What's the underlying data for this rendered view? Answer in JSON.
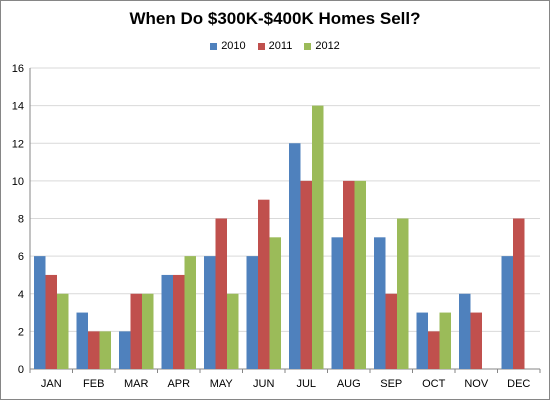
{
  "chart_data": {
    "type": "bar",
    "title": "When Do $300K-$400K Homes Sell?",
    "xlabel": "",
    "ylabel": "",
    "categories": [
      "JAN",
      "FEB",
      "MAR",
      "APR",
      "MAY",
      "JUN",
      "JUL",
      "AUG",
      "SEP",
      "OCT",
      "NOV",
      "DEC"
    ],
    "series": [
      {
        "name": "2010",
        "color": "#4F81BD",
        "values": [
          6,
          3,
          2,
          5,
          6,
          6,
          12,
          7,
          7,
          3,
          4,
          6
        ]
      },
      {
        "name": "2011",
        "color": "#C0504D",
        "values": [
          5,
          2,
          4,
          5,
          8,
          9,
          10,
          10,
          4,
          2,
          3,
          8
        ]
      },
      {
        "name": "2012",
        "color": "#9BBB59",
        "values": [
          4,
          2,
          4,
          6,
          4,
          7,
          14,
          10,
          8,
          3,
          null,
          null
        ]
      }
    ],
    "ylim": [
      0,
      16
    ],
    "yticks": [
      0,
      2,
      4,
      6,
      8,
      10,
      12,
      14,
      16
    ],
    "grid": true,
    "legend_position": "top"
  }
}
